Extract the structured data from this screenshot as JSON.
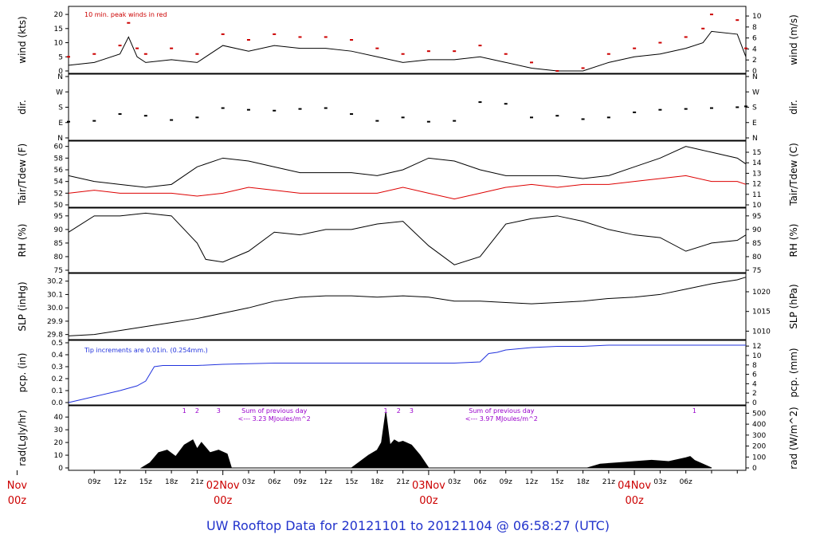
{
  "title": "UW Rooftop Data for 20121101  to  20121104 @ 06:58:27  (UTC)",
  "colors": {
    "title": "#2233cc",
    "day_label": "#cc0000",
    "peak": "#cc0000",
    "pcp": "#2233dd",
    "rad_note": "#9900cc",
    "tdew": "#dd0000",
    "line": "#000000"
  },
  "x_axis": {
    "hour_ticks": [
      "09z",
      "12z",
      "15z",
      "18z",
      "21z",
      "03z",
      "06z",
      "09z",
      "12z",
      "15z",
      "18z",
      "21z",
      "03z",
      "06z",
      "09z",
      "12z",
      "15z",
      "18z",
      "21z",
      "03z",
      "06z"
    ],
    "day_labels": [
      {
        "line1": "Nov",
        "line2": "00z"
      },
      {
        "line1": "02Nov",
        "line2": "00z"
      },
      {
        "line1": "03Nov",
        "line2": "00z"
      },
      {
        "line1": "04Nov",
        "line2": "00z"
      }
    ],
    "first_tick_hour": 9,
    "tick_step_hours": 3
  },
  "chart_data": [
    {
      "type": "line",
      "panel": "wind",
      "ylabel_left": "wind (kts)",
      "ylabel_right": "wind (m/s)",
      "ylim": [
        0,
        22
      ],
      "left_ticks": [
        0,
        5,
        10,
        15,
        20
      ],
      "right_ticks": [
        0,
        2,
        4,
        6,
        8,
        10
      ],
      "annotation": "10 min. peak winds in red",
      "series": [
        {
          "name": "wind",
          "x_hours": [
            6,
            9,
            12,
            13,
            14,
            15,
            18,
            21,
            24,
            27,
            30,
            33,
            36,
            39,
            42,
            45,
            48,
            51,
            54,
            57,
            60,
            63,
            66,
            69,
            72,
            75,
            78,
            80,
            81,
            84,
            85
          ],
          "values": [
            2,
            3,
            6,
            12,
            5,
            3,
            4,
            3,
            9,
            7,
            9,
            8,
            8,
            7,
            5,
            3,
            4,
            4,
            5,
            3,
            1,
            0,
            0,
            3,
            5,
            6,
            8,
            10,
            14,
            13,
            5
          ]
        },
        {
          "name": "10 min. peak winds",
          "x_hours": [
            6,
            9,
            12,
            13,
            14,
            15,
            18,
            21,
            24,
            27,
            30,
            33,
            36,
            39,
            42,
            45,
            48,
            51,
            54,
            57,
            60,
            63,
            66,
            69,
            72,
            75,
            78,
            80,
            81,
            84,
            85
          ],
          "values": [
            5,
            6,
            9,
            17,
            8,
            6,
            8,
            6,
            13,
            11,
            13,
            12,
            12,
            11,
            8,
            6,
            7,
            7,
            9,
            6,
            3,
            0,
            1,
            6,
            8,
            10,
            12,
            15,
            20,
            18,
            8
          ]
        }
      ]
    },
    {
      "type": "scatter",
      "panel": "dir",
      "ylabel_left": "dir.",
      "ylabel_right": "dir.",
      "left_ticks": [
        "N",
        "E",
        "S",
        "W",
        "N"
      ],
      "right_ticks": [
        "N",
        "E",
        "S",
        "W",
        "N"
      ],
      "ylim": [
        0,
        360
      ],
      "series": [
        {
          "name": "direction",
          "x_hours": [
            6,
            9,
            12,
            15,
            18,
            21,
            24,
            27,
            30,
            33,
            36,
            39,
            42,
            45,
            48,
            51,
            54,
            57,
            60,
            63,
            66,
            69,
            72,
            75,
            78,
            81,
            84,
            85
          ],
          "values": [
            95,
            100,
            140,
            130,
            105,
            120,
            175,
            165,
            160,
            170,
            175,
            140,
            100,
            120,
            95,
            100,
            210,
            200,
            120,
            130,
            110,
            120,
            150,
            165,
            170,
            175,
            180,
            185
          ]
        }
      ]
    },
    {
      "type": "line",
      "panel": "temp",
      "ylabel_left": "Tair/Tdew (F)",
      "ylabel_right": "Tair/Tdew (C)",
      "ylim": [
        50,
        60.5
      ],
      "left_ticks": [
        50,
        52,
        54,
        56,
        58,
        60
      ],
      "right_ticks": [
        10,
        11,
        12,
        13,
        14,
        15
      ],
      "series": [
        {
          "name": "Tair",
          "x_hours": [
            6,
            9,
            12,
            15,
            18,
            21,
            24,
            27,
            30,
            33,
            36,
            39,
            42,
            45,
            48,
            51,
            54,
            57,
            60,
            63,
            66,
            69,
            72,
            75,
            78,
            81,
            84,
            85
          ],
          "values": [
            55,
            54,
            53.5,
            53,
            53.5,
            56.5,
            58,
            57.5,
            56.5,
            55.5,
            55.5,
            55.5,
            55,
            56,
            58,
            57.5,
            56,
            55,
            55,
            55,
            54.5,
            55,
            56.5,
            58,
            60,
            59,
            58,
            57
          ]
        },
        {
          "name": "Tdew",
          "x_hours": [
            6,
            9,
            12,
            15,
            18,
            21,
            24,
            27,
            30,
            33,
            36,
            39,
            42,
            45,
            48,
            51,
            54,
            57,
            60,
            63,
            66,
            69,
            72,
            75,
            78,
            81,
            84,
            85
          ],
          "values": [
            52,
            52.5,
            52,
            52,
            52,
            51.5,
            52,
            53,
            52.5,
            52,
            52,
            52,
            52,
            53,
            52,
            51,
            52,
            53,
            53.5,
            53,
            53.5,
            53.5,
            54,
            54.5,
            55,
            54,
            54,
            53.5
          ]
        }
      ]
    },
    {
      "type": "line",
      "panel": "rh",
      "ylabel_left": "RH (%)",
      "ylabel_right": "RH (%)",
      "ylim": [
        75,
        97
      ],
      "left_ticks": [
        75,
        80,
        85,
        90,
        95
      ],
      "right_ticks": [
        75,
        80,
        85,
        90,
        95
      ],
      "series": [
        {
          "name": "RH",
          "x_hours": [
            6,
            9,
            12,
            15,
            18,
            21,
            22,
            24,
            27,
            30,
            33,
            36,
            39,
            42,
            45,
            48,
            51,
            54,
            57,
            60,
            63,
            66,
            69,
            72,
            75,
            78,
            81,
            84,
            85
          ],
          "values": [
            89,
            95,
            95,
            96,
            95,
            85,
            79,
            78,
            82,
            89,
            88,
            90,
            90,
            92,
            93,
            84,
            77,
            80,
            92,
            94,
            95,
            93,
            90,
            88,
            87,
            82,
            85,
            86,
            88
          ]
        }
      ]
    },
    {
      "type": "line",
      "panel": "slp",
      "ylabel_left": "SLP (inHg)",
      "ylabel_right": "SLP (hPa)",
      "ylim": [
        29.78,
        30.24
      ],
      "left_ticks": [
        29.8,
        29.9,
        30.0,
        30.1,
        30.2
      ],
      "right_ticks": [
        1010,
        1015,
        1020
      ],
      "series": [
        {
          "name": "SLP",
          "x_hours": [
            6,
            9,
            12,
            15,
            18,
            21,
            24,
            27,
            30,
            33,
            36,
            39,
            42,
            45,
            48,
            51,
            54,
            57,
            60,
            63,
            66,
            69,
            72,
            75,
            78,
            81,
            84,
            85
          ],
          "values": [
            29.79,
            29.8,
            29.83,
            29.86,
            29.89,
            29.92,
            29.96,
            30.0,
            30.05,
            30.08,
            30.09,
            30.09,
            30.08,
            30.09,
            30.08,
            30.05,
            30.05,
            30.04,
            30.03,
            30.04,
            30.05,
            30.07,
            30.08,
            30.1,
            30.14,
            30.18,
            30.21,
            30.23
          ]
        }
      ]
    },
    {
      "type": "line",
      "panel": "pcp",
      "ylabel_left": "pcp. (in)",
      "ylabel_right": "pcp. (mm)",
      "ylim": [
        0,
        0.5
      ],
      "left_ticks": [
        0.0,
        0.1,
        0.2,
        0.3,
        0.4,
        0.5
      ],
      "right_ticks": [
        0,
        2,
        4,
        6,
        8,
        10,
        12
      ],
      "annotation": "Tip increments are 0.01in. (0.254mm.)",
      "series": [
        {
          "name": "pcp",
          "x_hours": [
            6,
            9,
            12,
            14,
            15,
            16,
            17,
            21,
            24,
            30,
            33,
            45,
            48,
            51,
            54,
            55,
            56,
            57,
            60,
            63,
            66,
            69,
            72,
            85
          ],
          "values": [
            0.0,
            0.05,
            0.1,
            0.14,
            0.18,
            0.3,
            0.31,
            0.31,
            0.32,
            0.33,
            0.33,
            0.33,
            0.33,
            0.33,
            0.34,
            0.41,
            0.42,
            0.44,
            0.46,
            0.47,
            0.47,
            0.48,
            0.48,
            0.48
          ]
        }
      ]
    },
    {
      "type": "area",
      "panel": "rad",
      "ylabel_left": "rad(Lgly/hr)",
      "ylabel_right": "rad (W/m^2)",
      "ylim": [
        0,
        47
      ],
      "left_ticks": [
        0,
        10,
        20,
        30,
        40
      ],
      "right_ticks": [
        0,
        100,
        200,
        300,
        400,
        500
      ],
      "annotations": [
        {
          "text": "Sum of previous day",
          "text2": "<--- 3.23 MJoules/m^2",
          "x_hour": 30
        },
        {
          "text": "Sum of previous day",
          "text2": "<--- 3.97 MJoules/m^2",
          "x_hour": 56.5
        }
      ],
      "markers": [
        {
          "label": "1",
          "x_hour": 19.5
        },
        {
          "label": "2",
          "x_hour": 21
        },
        {
          "label": "3",
          "x_hour": 23.5
        },
        {
          "label": "1",
          "x_hour": 43
        },
        {
          "label": "2",
          "x_hour": 44.5
        },
        {
          "label": "3",
          "x_hour": 46
        },
        {
          "label": "1",
          "x_hour": 79
        }
      ],
      "series": [
        {
          "name": "rad",
          "x_hours": [
            14.5,
            15.5,
            16.5,
            17.5,
            18.5,
            19.5,
            20.5,
            21,
            21.5,
            22.5,
            23.5,
            24.5,
            25,
            39,
            40,
            41,
            42,
            42.5,
            43,
            43.5,
            44,
            44.5,
            45,
            46,
            47,
            47.5,
            48,
            66.5,
            68,
            70,
            72,
            74,
            76,
            78,
            78.5,
            79,
            80,
            81
          ],
          "values": [
            0,
            4,
            12,
            14,
            9,
            18,
            22,
            15,
            20,
            12,
            14,
            11,
            0,
            0,
            5,
            10,
            14,
            20,
            44,
            18,
            22,
            20,
            21,
            18,
            10,
            5,
            0,
            0,
            3,
            4,
            5,
            6,
            5,
            8,
            9,
            6,
            3,
            0
          ]
        }
      ]
    }
  ]
}
